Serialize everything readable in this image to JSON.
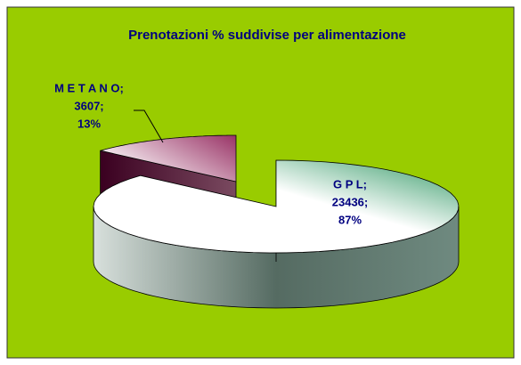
{
  "chart_data": {
    "type": "pie3d",
    "title": "Prenotazioni % suddivise per alimentazione",
    "categories": [
      "M E T A N O;",
      "G P L;"
    ],
    "values": [
      3607,
      23436
    ],
    "value_labels": [
      "3607;",
      "23436;"
    ],
    "percentages": [
      13,
      87
    ],
    "percentage_labels": [
      "13%",
      "87%"
    ],
    "colors": [
      "#993366",
      "#339966"
    ],
    "label_colors": [
      "#000080",
      "#000080"
    ],
    "background": "#99cc00"
  }
}
